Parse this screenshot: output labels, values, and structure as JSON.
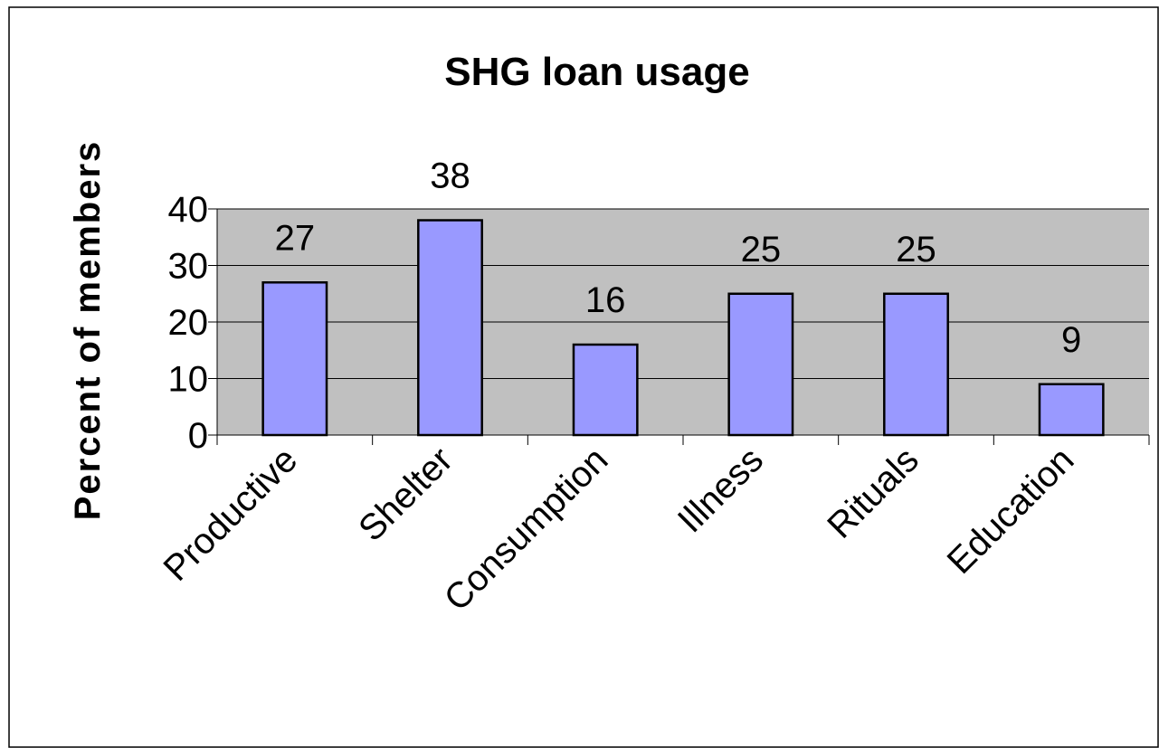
{
  "chart_data": {
    "type": "bar",
    "title": "SHG loan usage",
    "y_label": "Percent of members",
    "categories": [
      "Productive",
      "Shelter",
      "Consumption",
      "Illness",
      "Rituals",
      "Education"
    ],
    "values": [
      27,
      38,
      16,
      25,
      25,
      9
    ],
    "color": "#9999ff",
    "ylim": [
      0,
      40
    ],
    "yticks": [
      0,
      10,
      20,
      30,
      40
    ],
    "grid": true
  }
}
